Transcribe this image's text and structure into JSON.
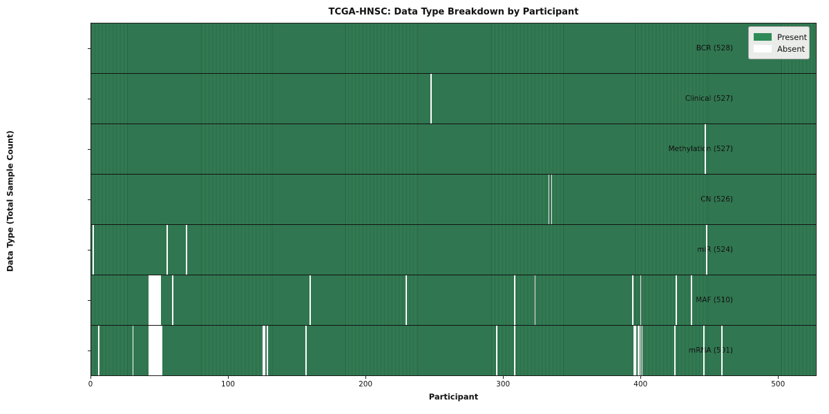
{
  "title": "TCGA-HNSC: Data Type Breakdown by Participant",
  "chart_data": {
    "type": "heatmap",
    "title": "TCGA-HNSC: Data Type Breakdown by Participant",
    "xlabel": "Participant",
    "ylabel": "Data Type (Total Sample Count)",
    "n_participants": 528,
    "x_ticks": [
      0,
      100,
      200,
      300,
      400,
      500
    ],
    "legend_position": "upper right",
    "grid": false,
    "legend": [
      {
        "label": "Present",
        "color": "#2e8b57"
      },
      {
        "label": "Absent",
        "color": "#ffffff"
      }
    ],
    "colors": {
      "present_light": "#3b8e60",
      "present_dark": "#265f40",
      "absent": "#ffffff",
      "row_divider": "#111111",
      "axis": "#1a1a1a"
    },
    "rows": [
      {
        "label": "BCR (528)",
        "name": "BCR",
        "total": 528,
        "absent_participants": []
      },
      {
        "label": "Clinical (527)",
        "name": "Clinical",
        "total": 527,
        "absent_participants": [
          247
        ]
      },
      {
        "label": "Methylation (527)",
        "name": "Methylation",
        "total": 527,
        "absent_participants": [
          447
        ]
      },
      {
        "label": "CN (526)",
        "name": "CN",
        "total": 526,
        "absent_participants": [
          333,
          335
        ]
      },
      {
        "label": "miR (524)",
        "name": "miR",
        "total": 524,
        "absent_participants": [
          1,
          55,
          69,
          448
        ]
      },
      {
        "label": "MAF (510)",
        "name": "MAF",
        "total": 510,
        "absent_participants": [
          42,
          43,
          44,
          45,
          46,
          47,
          48,
          49,
          50,
          59,
          159,
          229,
          308,
          323,
          394,
          400,
          426,
          437
        ]
      },
      {
        "label": "mRNA (501)",
        "name": "mRNA",
        "total": 501,
        "absent_participants": [
          5,
          30,
          42,
          43,
          44,
          45,
          46,
          47,
          48,
          49,
          50,
          51,
          125,
          126,
          128,
          156,
          295,
          308,
          395,
          396,
          398,
          399,
          400,
          401,
          425,
          446,
          459
        ]
      }
    ]
  }
}
